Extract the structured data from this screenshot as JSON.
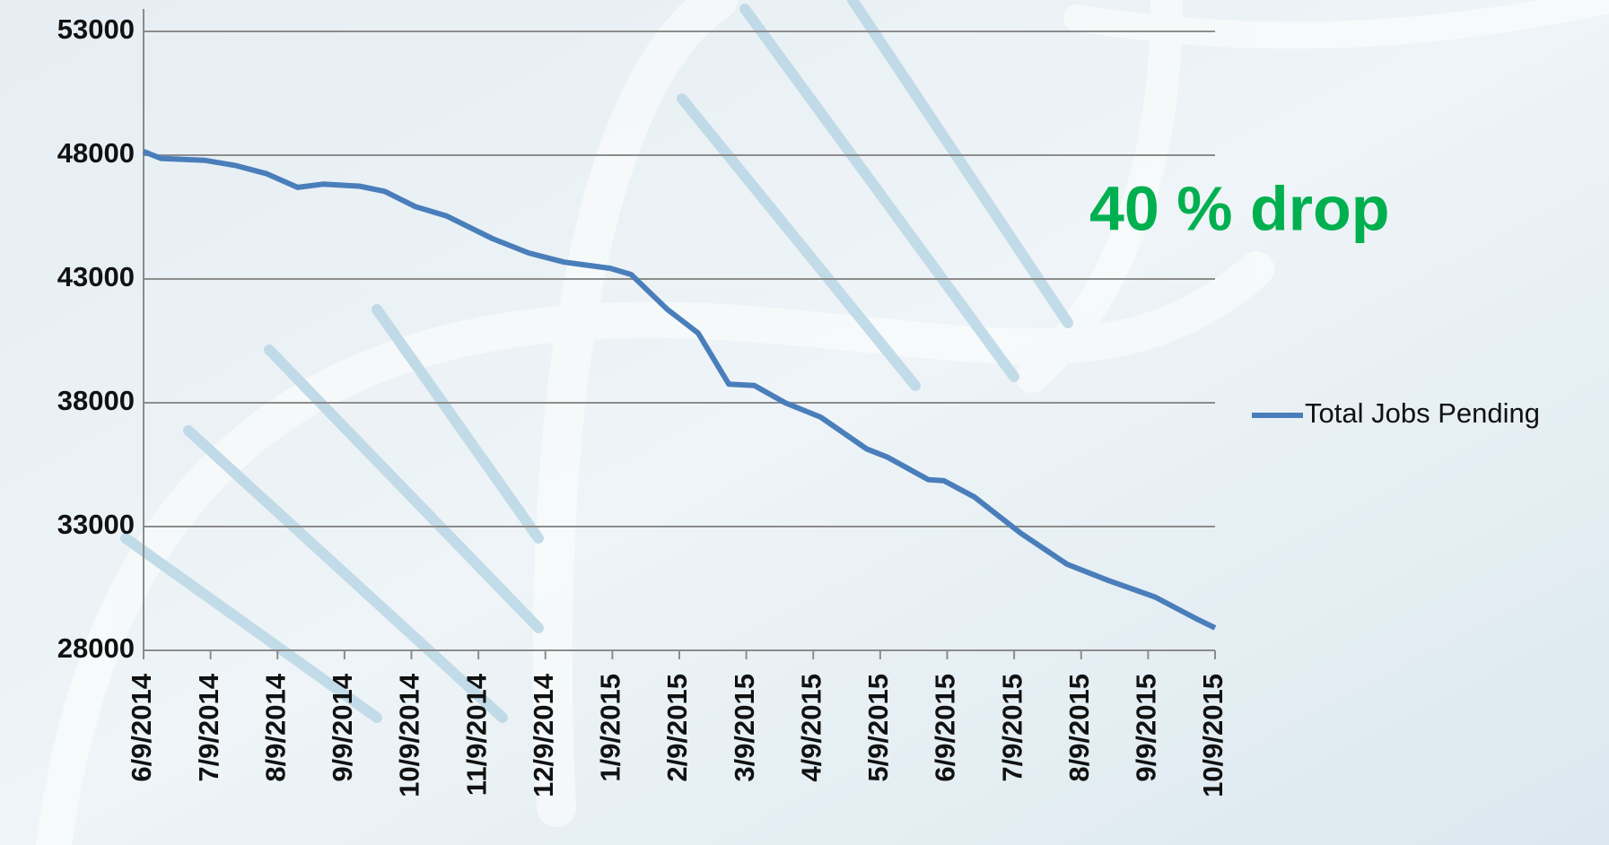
{
  "chart_data": {
    "type": "line",
    "annotation": "40 % drop",
    "x": [
      0,
      0.26,
      0.92,
      1.38,
      1.84,
      2.3,
      2.68,
      3.22,
      3.6,
      4.06,
      4.52,
      5.21,
      5.75,
      6.28,
      6.97,
      7.28,
      7.82,
      8.28,
      8.74,
      9.12,
      9.58,
      10.11,
      10.8,
      11.11,
      11.72,
      11.95,
      12.41,
      13.1,
      13.79,
      14.41,
      15.1,
      15.71,
      16
    ],
    "series": [
      {
        "name": "Total Jobs Pending",
        "color": "#4a7ebb",
        "values": [
          48150,
          47870,
          47790,
          47580,
          47250,
          46700,
          46830,
          46750,
          46540,
          45920,
          45550,
          44630,
          44050,
          43680,
          43430,
          43180,
          41770,
          40820,
          38750,
          38700,
          38000,
          37420,
          36130,
          35800,
          34890,
          34850,
          34190,
          32730,
          31480,
          30820,
          30160,
          29290,
          28910
        ]
      }
    ],
    "xlim": [
      0,
      16
    ],
    "xticks": [
      {
        "value": 0,
        "label": "6/9/2014"
      },
      {
        "value": 1,
        "label": "7/9/2014"
      },
      {
        "value": 2,
        "label": "8/9/2014"
      },
      {
        "value": 3,
        "label": "9/9/2014"
      },
      {
        "value": 4,
        "label": "10/9/2014"
      },
      {
        "value": 5,
        "label": "11/9/2014"
      },
      {
        "value": 6,
        "label": "12/9/2014"
      },
      {
        "value": 7,
        "label": "1/9/2015"
      },
      {
        "value": 8,
        "label": "2/9/2015"
      },
      {
        "value": 9,
        "label": "3/9/2015"
      },
      {
        "value": 10,
        "label": "4/9/2015"
      },
      {
        "value": 11,
        "label": "5/9/2015"
      },
      {
        "value": 12,
        "label": "6/9/2015"
      },
      {
        "value": 13,
        "label": "7/9/2015"
      },
      {
        "value": 14,
        "label": "8/9/2015"
      },
      {
        "value": 15,
        "label": "9/9/2015"
      },
      {
        "value": 16,
        "label": "10/9/2015"
      }
    ],
    "ylim": [
      28000,
      53000
    ],
    "yticks": [
      28000,
      33000,
      38000,
      43000,
      48000,
      53000
    ],
    "grid": true,
    "legend": "right"
  }
}
